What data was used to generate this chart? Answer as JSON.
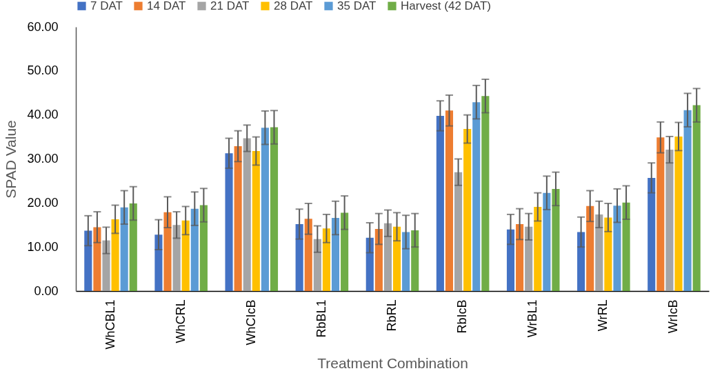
{
  "chart_data": {
    "type": "bar",
    "xlabel": "Treatment Combination",
    "ylabel": "SPAD Value",
    "legend": "top",
    "categories": [
      "WhCBL1",
      "WhCRL",
      "WhCIcB",
      "RbBL1",
      "RbRL",
      "RbIcB",
      "WrBL1",
      "WrRL",
      "WrIcB"
    ],
    "ylim": [
      0,
      60
    ],
    "yticks": [
      {
        "value": 0,
        "label": "0.00"
      },
      {
        "value": 10,
        "label": "10.00"
      },
      {
        "value": 20,
        "label": "20.00"
      },
      {
        "value": 30,
        "label": "30.00"
      },
      {
        "value": 40,
        "label": "40.00"
      },
      {
        "value": 50,
        "label": "50.00"
      },
      {
        "value": 60,
        "label": "60.00"
      }
    ],
    "series": [
      {
        "name": "7 DAT",
        "color": "#4472c4",
        "values": [
          13.7,
          12.8,
          31.3,
          15.2,
          12.1,
          39.8,
          14.0,
          13.4,
          25.7
        ],
        "errors": [
          3.4,
          3.4,
          3.4,
          3.4,
          3.4,
          3.4,
          3.4,
          3.4,
          3.4
        ]
      },
      {
        "name": "14 DAT",
        "color": "#ed7d31",
        "values": [
          14.5,
          17.9,
          32.9,
          16.4,
          14.1,
          41.0,
          15.2,
          19.3,
          34.9
        ],
        "errors": [
          3.5,
          3.5,
          3.5,
          3.5,
          3.5,
          3.5,
          3.5,
          3.5,
          3.5
        ]
      },
      {
        "name": "21 DAT",
        "color": "#a5a5a5",
        "values": [
          11.5,
          15.0,
          34.7,
          11.8,
          15.4,
          27.0,
          14.6,
          17.4,
          32.1
        ],
        "errors": [
          3.0,
          3.0,
          3.0,
          3.0,
          3.0,
          3.0,
          3.0,
          3.0,
          3.0
        ]
      },
      {
        "name": "28 DAT",
        "color": "#ffc000",
        "values": [
          16.3,
          16.0,
          31.8,
          14.2,
          14.6,
          36.8,
          19.1,
          16.7,
          35.1
        ],
        "errors": [
          3.2,
          3.2,
          3.2,
          3.2,
          3.2,
          3.2,
          3.2,
          3.2,
          3.2
        ]
      },
      {
        "name": "35 DAT",
        "color": "#5b9bd5",
        "values": [
          19.0,
          18.7,
          37.1,
          16.6,
          13.4,
          42.9,
          22.3,
          19.4,
          41.1
        ],
        "errors": [
          3.8,
          3.8,
          3.8,
          3.8,
          3.8,
          3.8,
          3.8,
          3.8,
          3.8
        ]
      },
      {
        "name": "Harvest (42 DAT)",
        "color": "#70ad47",
        "values": [
          19.9,
          19.5,
          37.2,
          17.8,
          13.8,
          44.3,
          23.2,
          20.1,
          42.2
        ],
        "errors": [
          3.8,
          3.8,
          3.8,
          3.8,
          3.8,
          3.8,
          3.8,
          3.8,
          3.8
        ]
      }
    ]
  }
}
